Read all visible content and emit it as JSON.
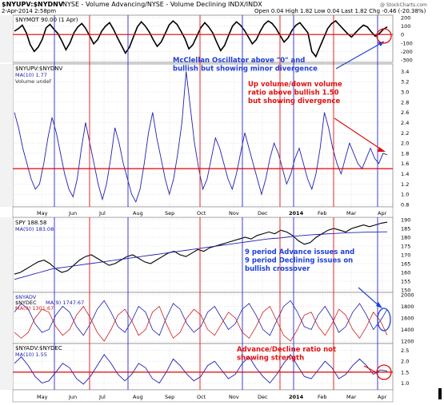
{
  "header": {
    "symbol_line": "$NYUPV:$NYDNV",
    "description": "NYSE - Volume Advancing/NYSE - Volume Declining INDX/INDX",
    "date": "2-Apr-2014 2:58pm",
    "ohlc": "Open 0.04  High 1.82  Low 0.04  Last 1.82  Chg -0.46 (-20.38%)",
    "watermark": "@ StockCharts.com"
  },
  "months": [
    "May",
    "Jun",
    "Jul",
    "Aug",
    "Sep",
    "Oct",
    "Nov",
    "Dec",
    "2014",
    "Feb",
    "Mar",
    "Apr"
  ],
  "annotations": {
    "mcclellan": [
      "McClellan Oscillator above \"0\" and",
      "bullish but showing minor divergence"
    ],
    "updown": [
      "Up volume/down volume",
      "ratio above bullish 1.50",
      "but showing divergence"
    ],
    "advdec_issues": [
      "9 period Advance issues and",
      "9 period Declining issues on",
      "bullish crossover"
    ],
    "ad_ratio": [
      "Advance/Decline ratio not",
      "showing strength"
    ]
  },
  "chart_data": [
    {
      "type": "line",
      "title": "$NYMOT 90.00 (1 Apr)",
      "ylim": [
        -300,
        200
      ],
      "ticks": [
        "200",
        "100",
        "0",
        "-100",
        "-200",
        "-300"
      ],
      "reference_line": 0,
      "series": [
        {
          "name": "$NYMOT",
          "values": [
            40,
            70,
            110,
            20,
            -120,
            -200,
            -150,
            -60,
            80,
            120,
            60,
            10,
            -80,
            -180,
            -100,
            20,
            90,
            130,
            70,
            -20,
            -110,
            -60,
            40,
            100,
            140,
            60,
            -40,
            -130,
            -220,
            -150,
            -30,
            90,
            150,
            100,
            30,
            -60,
            -140,
            -90,
            10,
            110,
            160,
            120,
            40,
            -50,
            -170,
            -120,
            -20,
            80,
            140,
            90,
            20,
            -90,
            -190,
            -130,
            -10,
            100,
            150,
            110,
            50,
            -30,
            -110,
            -60,
            40,
            120,
            160,
            130,
            70,
            -10,
            -90,
            -40,
            50,
            110,
            140,
            80,
            20,
            -200,
            -260,
            -150,
            -40,
            70,
            130,
            160,
            110,
            60,
            10,
            -30,
            20,
            70,
            110,
            90,
            30,
            -20,
            10,
            60,
            90
          ]
        }
      ]
    },
    {
      "type": "line",
      "title": "$NYUPV:$NYDNV",
      "legend": [
        "MA(10) 1.77",
        "Volume undef"
      ],
      "ylim": [
        0.8,
        3.5
      ],
      "ticks": [
        "3.4",
        "3.2",
        "3.0",
        "2.8",
        "2.6",
        "2.4",
        "2.2",
        "2.0",
        "1.8",
        "1.6",
        "1.4",
        "1.2",
        "1.0",
        "0.8"
      ],
      "reference_line": 1.5,
      "series": [
        {
          "name": "MA(10)",
          "values": [
            2.6,
            2.3,
            1.9,
            1.6,
            1.3,
            1.1,
            1.2,
            1.6,
            2.1,
            2.5,
            2.2,
            1.8,
            1.4,
            1.1,
            0.95,
            1.3,
            1.9,
            2.4,
            2.0,
            1.6,
            1.2,
            0.9,
            1.2,
            1.7,
            2.3,
            2.0,
            1.6,
            1.3,
            1.0,
            0.85,
            1.1,
            1.6,
            2.2,
            2.6,
            2.1,
            1.7,
            1.3,
            1.0,
            1.3,
            1.8,
            2.4,
            3.4,
            2.7,
            2.0,
            1.5,
            1.1,
            1.3,
            1.7,
            2.1,
            1.9,
            1.6,
            1.3,
            1.1,
            1.4,
            1.8,
            2.2,
            1.9,
            1.6,
            1.3,
            1.0,
            1.3,
            1.7,
            2.0,
            1.8,
            1.5,
            1.2,
            1.4,
            1.7,
            1.9,
            1.6,
            1.3,
            1.1,
            1.4,
            1.9,
            2.6,
            2.3,
            1.9,
            1.6,
            1.4,
            1.7,
            2.0,
            1.8,
            1.6,
            1.5,
            1.7,
            1.9,
            1.7,
            1.6,
            1.8,
            1.77
          ]
        }
      ]
    },
    {
      "type": "line",
      "title": "SPY 188.58",
      "legend": [
        "SPY",
        "MA(50) 183.08"
      ],
      "ylim": [
        150,
        190
      ],
      "ticks": [
        "190",
        "185",
        "180",
        "175",
        "170",
        "165",
        "160",
        "155",
        "150"
      ],
      "series": [
        {
          "name": "SPY",
          "values": [
            159,
            160,
            162,
            164,
            166,
            167,
            165,
            162,
            160,
            161,
            164,
            167,
            169,
            170,
            168,
            166,
            164,
            165,
            167,
            169,
            170,
            168,
            166,
            165,
            167,
            169,
            171,
            172,
            170,
            169,
            171,
            173,
            172,
            174,
            175,
            176,
            177,
            178,
            179,
            180,
            179,
            181,
            182,
            183,
            182,
            184,
            183,
            181,
            178,
            176,
            177,
            180,
            182,
            184,
            185,
            184,
            183,
            185,
            186,
            187,
            186,
            187,
            188,
            188.58
          ]
        },
        {
          "name": "MA(50)",
          "values": [
            156,
            157,
            158,
            159,
            160,
            161,
            162,
            162.5,
            163,
            163.5,
            164,
            164.5,
            165,
            165.5,
            166,
            166.5,
            167,
            167.5,
            168,
            168.5,
            169,
            169.5,
            170,
            170.5,
            171,
            171.5,
            172,
            172.5,
            173,
            173.5,
            174,
            174.5,
            175,
            175.5,
            176,
            176.5,
            177,
            177.5,
            178,
            178.5,
            179,
            179.3,
            179.6,
            180,
            180.4,
            180.8,
            181.1,
            181.4,
            181.6,
            181.8,
            182,
            182.2,
            182.4,
            182.6,
            182.7,
            182.8,
            182.9,
            183,
            183.05,
            183.08
          ]
        }
      ]
    },
    {
      "type": "line",
      "title": "$NYADV",
      "legend": [
        "MA(9) 1747.67",
        "$NYDEC",
        "MA(9) 1301.67"
      ],
      "ylim": [
        1200,
        2000
      ],
      "ticks": [
        "2000",
        "1800",
        "1600",
        "1400",
        "1200"
      ],
      "series": [
        {
          "name": "$NYADV MA(9)",
          "values": [
            1700,
            1850,
            1750,
            1500,
            1350,
            1400,
            1650,
            1800,
            1700,
            1450,
            1300,
            1500,
            1750,
            1900,
            1700,
            1450,
            1350,
            1550,
            1800,
            1700,
            1400,
            1300,
            1600,
            1850,
            1750,
            1500,
            1350,
            1450,
            1700,
            1800,
            1600,
            1400,
            1500,
            1750,
            1850,
            1650,
            1400,
            1300,
            1550,
            1800,
            1900,
            1700,
            1450,
            1400,
            1650,
            1800,
            1600,
            1350,
            1450,
            1700,
            1850,
            1650,
            1400,
            1550,
            1747.67
          ]
        },
        {
          "name": "$NYDEC MA(9)",
          "values": [
            1350,
            1250,
            1350,
            1600,
            1750,
            1700,
            1450,
            1300,
            1400,
            1650,
            1800,
            1600,
            1350,
            1200,
            1400,
            1650,
            1750,
            1550,
            1300,
            1400,
            1700,
            1800,
            1500,
            1250,
            1350,
            1600,
            1750,
            1650,
            1400,
            1300,
            1500,
            1700,
            1600,
            1350,
            1250,
            1450,
            1700,
            1800,
            1550,
            1300,
            1200,
            1400,
            1650,
            1700,
            1450,
            1300,
            1500,
            1750,
            1650,
            1400,
            1250,
            1450,
            1700,
            1550,
            1301.67
          ]
        }
      ]
    },
    {
      "type": "line",
      "title": "$NYADV:$NYDEC",
      "legend": [
        "MA(10) 1.55"
      ],
      "ylim": [
        0.8,
        2.7
      ],
      "ticks": [
        "2.5",
        "2.0",
        "1.5",
        "1.0"
      ],
      "reference_line": 1.5,
      "series": [
        {
          "name": "MA(10)",
          "values": [
            1.9,
            2.2,
            1.8,
            1.3,
            1.0,
            1.1,
            1.5,
            1.9,
            1.7,
            1.2,
            0.95,
            1.3,
            1.8,
            2.3,
            1.9,
            1.4,
            1.1,
            1.4,
            1.9,
            1.7,
            1.2,
            1.0,
            1.5,
            2.1,
            1.8,
            1.4,
            1.1,
            1.3,
            1.8,
            2.0,
            1.6,
            1.2,
            1.4,
            1.9,
            2.2,
            1.7,
            1.3,
            1.0,
            1.4,
            1.9,
            2.3,
            1.8,
            1.3,
            1.2,
            1.6,
            2.0,
            1.7,
            1.2,
            1.4,
            1.8,
            2.1,
            1.8,
            1.4,
            1.6,
            1.55
          ]
        }
      ]
    }
  ],
  "colors": {
    "primary": "#2020b0",
    "ref": "#e00000",
    "annot_blue": "#1f3fd6",
    "annot_red": "#e01010",
    "black": "#000000",
    "red_series": "#d02020",
    "grid": "#c8c8c8"
  }
}
